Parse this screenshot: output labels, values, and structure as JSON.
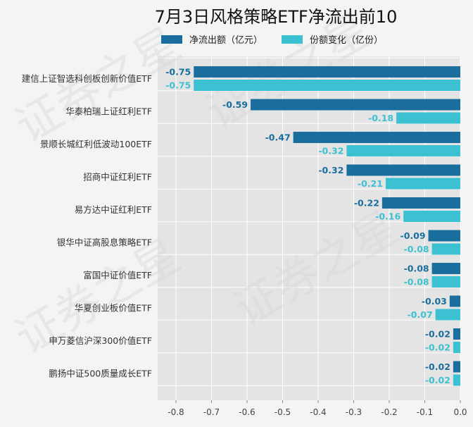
{
  "chart_data": {
    "type": "bar",
    "orientation": "horizontal",
    "title": "7月3日风格策略ETF净流出前10",
    "categories": [
      "建信上证智选科创板创新价值ETF",
      "华泰柏瑞上证红利ETF",
      "景顺长城红利低波动100ETF",
      "招商中证红利ETF",
      "易方达中证红利ETF",
      "银华中证高股息策略ETF",
      "富国中证价值ETF",
      "华夏创业板价值ETF",
      "申万菱信沪深300价值ETF",
      "鹏扬中证500质量成长ETF"
    ],
    "series": [
      {
        "name": "净流出额（亿元）",
        "color": "#1a6e9e",
        "values": [
          -0.75,
          -0.59,
          -0.47,
          -0.32,
          -0.22,
          -0.09,
          -0.08,
          -0.03,
          -0.02,
          -0.02
        ]
      },
      {
        "name": "份额变化（亿份）",
        "color": "#3cc1d2",
        "values": [
          -0.75,
          -0.18,
          -0.32,
          -0.21,
          -0.16,
          -0.08,
          -0.08,
          -0.07,
          -0.02,
          -0.02
        ]
      }
    ],
    "xlim": [
      -0.85,
      0.0
    ],
    "xticks": [
      -0.8,
      -0.7,
      -0.6,
      -0.5,
      -0.4,
      -0.3,
      -0.2,
      -0.1,
      0.0
    ],
    "xtick_labels": [
      "-0.8",
      "-0.7",
      "-0.6",
      "-0.5",
      "-0.4",
      "-0.3",
      "-0.2",
      "-0.1",
      "0.0"
    ],
    "grid": true,
    "legend_position": "top",
    "watermark": "证券之星"
  }
}
